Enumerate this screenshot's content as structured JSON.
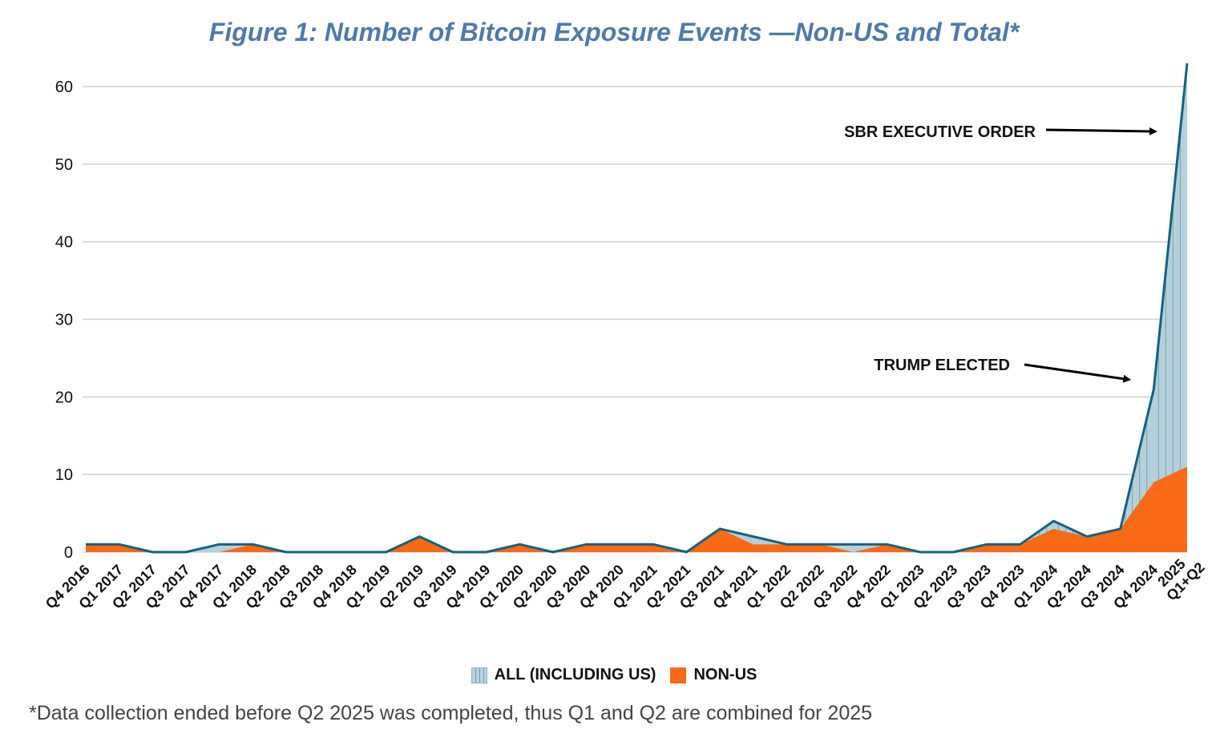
{
  "figure": {
    "title": "Figure 1: Number of Bitcoin Exposure Events —Non-US and Total*",
    "footnote": "*Data collection ended before Q2 2025 was completed, thus Q1 and Q2 are combined for 2025"
  },
  "legend": {
    "all_label": "ALL (INCLUDING US)",
    "nonus_label": "NON-US"
  },
  "colors": {
    "title": "#4f79ad",
    "all_fill": "#b4d0db",
    "all_line": "#13627e",
    "nonus_fill": "#f86a16",
    "grid": "#d0d0d0"
  },
  "chart_data": {
    "type": "area",
    "title": "Figure 1: Number of Bitcoin Exposure Events —Non-US and Total*",
    "xlabel": "",
    "ylabel": "",
    "ylim": [
      0,
      63
    ],
    "yticks": [
      0,
      10,
      20,
      30,
      40,
      50,
      60
    ],
    "grid": true,
    "legend_position": "bottom-center",
    "categories": [
      "Q4 2016",
      "Q1 2017",
      "Q2 2017",
      "Q3 2017",
      "Q4 2017",
      "Q1 2018",
      "Q2 2018",
      "Q3 2018",
      "Q4 2018",
      "Q1 2019",
      "Q2 2019",
      "Q3 2019",
      "Q4 2019",
      "Q1 2020",
      "Q2 2020",
      "Q3 2020",
      "Q4 2020",
      "Q1 2021",
      "Q2 2021",
      "Q3 2021",
      "Q4 2021",
      "Q1 2022",
      "Q2 2022",
      "Q3 2022",
      "Q4 2022",
      "Q1 2023",
      "Q2 2023",
      "Q3 2023",
      "Q4 2023",
      "Q1 2024",
      "Q2 2024",
      "Q3 2024",
      "Q4 2024",
      "Q1+Q2 2025"
    ],
    "series": [
      {
        "name": "ALL (INCLUDING US)",
        "values": [
          1,
          1,
          0,
          0,
          1,
          1,
          0,
          0,
          0,
          0,
          2,
          0,
          0,
          1,
          0,
          1,
          1,
          1,
          0,
          3,
          2,
          1,
          1,
          1,
          1,
          0,
          0,
          1,
          1,
          4,
          2,
          3,
          21,
          63
        ]
      },
      {
        "name": "NON-US",
        "values": [
          1,
          1,
          0,
          0,
          0,
          1,
          0,
          0,
          0,
          0,
          2,
          0,
          0,
          1,
          0,
          1,
          1,
          1,
          0,
          3,
          1,
          1,
          1,
          0,
          1,
          0,
          0,
          1,
          1,
          3,
          2,
          3,
          9,
          11
        ]
      }
    ],
    "annotations": [
      {
        "text": "SBR EXECUTIVE ORDER",
        "target_category": "Q1+Q2 2025"
      },
      {
        "text": "TRUMP ELECTED",
        "target_category": "Q4 2024"
      }
    ]
  }
}
